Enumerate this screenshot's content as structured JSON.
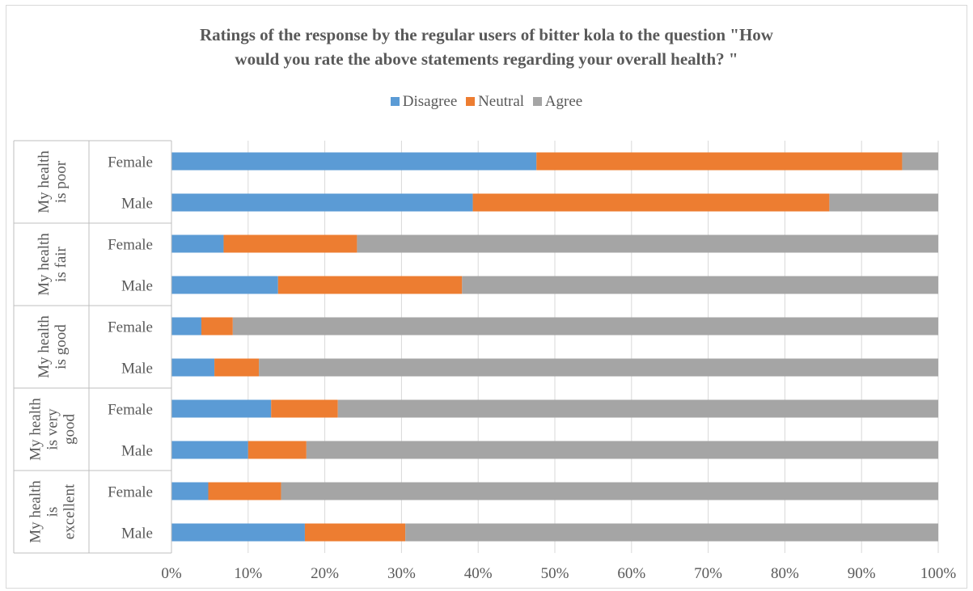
{
  "chart_data": {
    "type": "bar",
    "orientation": "horizontal",
    "stacked": "percent",
    "title_lines": [
      "Ratings of the response by the regular users of bitter kola to the question \"How",
      "would you rate the above statements regarding your overall health? \""
    ],
    "legend_position": "top",
    "grid": true,
    "xlim": [
      0,
      100
    ],
    "x_ticks": [
      "0%",
      "10%",
      "20%",
      "30%",
      "40%",
      "50%",
      "60%",
      "70%",
      "80%",
      "90%",
      "100%"
    ],
    "groups": [
      {
        "label": "My health is poor",
        "label_lines": [
          "My health",
          "is poor"
        ],
        "subcategories": [
          "Female",
          "Male"
        ]
      },
      {
        "label": "My health is fair",
        "label_lines": [
          "My health",
          "is fair"
        ],
        "subcategories": [
          "Female",
          "Male"
        ]
      },
      {
        "label": "My health is good",
        "label_lines": [
          "My health",
          "is good"
        ],
        "subcategories": [
          "Female",
          "Male"
        ]
      },
      {
        "label": "My health is very good",
        "label_lines": [
          "My health",
          "is very",
          "good"
        ],
        "subcategories": [
          "Female",
          "Male"
        ]
      },
      {
        "label": "My health is excellent",
        "label_lines": [
          "My health",
          "is",
          "excellent"
        ],
        "subcategories": [
          "Female",
          "Male"
        ]
      }
    ],
    "series": [
      {
        "name": "Disagree",
        "color": "#5b9bd5",
        "values": [
          [
            47.6,
            39.3
          ],
          [
            6.8,
            13.9
          ],
          [
            3.9,
            5.6
          ],
          [
            13.0,
            10.0
          ],
          [
            4.8,
            17.4
          ]
        ]
      },
      {
        "name": "Neutral",
        "color": "#ed7d31",
        "values": [
          [
            47.7,
            46.5
          ],
          [
            17.4,
            24.0
          ],
          [
            4.1,
            5.8
          ],
          [
            8.7,
            7.6
          ],
          [
            9.5,
            13.1
          ]
        ]
      },
      {
        "name": "Agree",
        "color": "#a5a5a5",
        "values": [
          [
            4.7,
            14.2
          ],
          [
            75.8,
            62.1
          ],
          [
            92.0,
            88.6
          ],
          [
            78.3,
            82.4
          ],
          [
            85.7,
            69.5
          ]
        ]
      }
    ]
  }
}
